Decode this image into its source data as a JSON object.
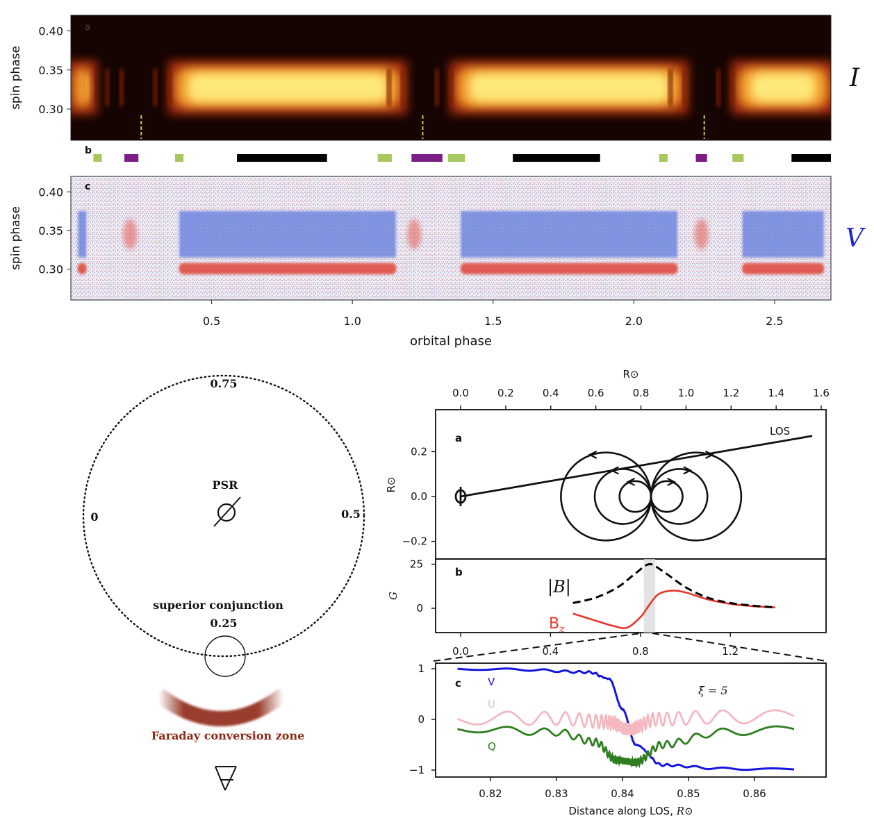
{
  "top_figure": {
    "panel_a": {
      "label": "a",
      "ylabel": "spin phase",
      "yticks": [
        "0.40",
        "0.35",
        "0.30"
      ],
      "side_label": "I",
      "eclipse_marker_color": "#d9c23a"
    },
    "panel_b": {
      "label": "b",
      "colors": {
        "green": "#a6c85e",
        "purple": "#7b1e86",
        "black": "#000000"
      }
    },
    "panel_c": {
      "label": "c",
      "ylabel": "spin phase",
      "yticks": [
        "0.40",
        "0.35",
        "0.30"
      ],
      "side_label": "V",
      "side_label_color": "#1f23d6"
    },
    "xticks": [
      "0.5",
      "1.0",
      "1.5",
      "2.0",
      "2.5"
    ],
    "xlabel": "orbital phase"
  },
  "orbit_diagram": {
    "label_top": "0.75",
    "label_left": "0",
    "label_right": "0.5",
    "center_label": "PSR",
    "conjunction_label": "superior conjunction",
    "label_bottom": "0.25",
    "zone_label": "Faraday conversion zone",
    "zone_color": "#8e2a17"
  },
  "chart_data": [
    {
      "type": "heatmap",
      "panel": "a",
      "title": "",
      "xlabel": "orbital phase",
      "ylabel": "spin phase",
      "xlim": [
        0.0,
        2.7
      ],
      "ylim": [
        0.26,
        0.42
      ],
      "bright_intervals_orbital_phase": [
        [
          0.0,
          0.08
        ],
        [
          0.36,
          1.18
        ],
        [
          1.36,
          2.18
        ],
        [
          2.36,
          2.7
        ]
      ],
      "bright_spin_phase_range": [
        0.3,
        0.355
      ],
      "eclipse_markers_orbital_phase": [
        0.25,
        1.25,
        2.25
      ],
      "colormap": "hot (black-red-yellow)"
    },
    {
      "type": "timeline",
      "panel": "b",
      "segments": [
        {
          "start": 0.08,
          "end": 0.11,
          "color": "green"
        },
        {
          "start": 0.19,
          "end": 0.24,
          "color": "purple"
        },
        {
          "start": 0.37,
          "end": 0.4,
          "color": "green"
        },
        {
          "start": 0.59,
          "end": 0.91,
          "color": "black"
        },
        {
          "start": 1.09,
          "end": 1.14,
          "color": "green"
        },
        {
          "start": 1.21,
          "end": 1.32,
          "color": "purple"
        },
        {
          "start": 1.34,
          "end": 1.4,
          "color": "green"
        },
        {
          "start": 1.57,
          "end": 1.88,
          "color": "black"
        },
        {
          "start": 2.09,
          "end": 2.12,
          "color": "green"
        },
        {
          "start": 2.22,
          "end": 2.26,
          "color": "purple"
        },
        {
          "start": 2.35,
          "end": 2.39,
          "color": "green"
        },
        {
          "start": 2.56,
          "end": 2.7,
          "color": "black"
        }
      ]
    },
    {
      "type": "heatmap",
      "panel": "c",
      "xlabel": "orbital phase",
      "ylabel": "spin phase",
      "xlim": [
        0.0,
        2.7
      ],
      "ylim": [
        0.26,
        0.42
      ],
      "blue_band_spin_phase": [
        0.315,
        0.375
      ],
      "red_band_spin_phase": [
        0.297,
        0.306
      ],
      "red_spots_orbital_phase": [
        0.21,
        1.22,
        2.24
      ],
      "colormap": "bwr"
    },
    {
      "type": "line",
      "panel": "a",
      "label": "a",
      "top_axis_label": "R⊙",
      "ylabel": "R⊙",
      "xlim": [
        0.0,
        1.6
      ],
      "ylim": [
        -0.25,
        0.3
      ],
      "xticks": [
        "0.0",
        "0.2",
        "0.4",
        "0.6",
        "0.8",
        "1.0",
        "1.2",
        "1.4",
        "1.6"
      ],
      "yticks": [
        "0.2",
        "0.0",
        "−0.2"
      ],
      "los_label": "LOS",
      "los_line": {
        "x": [
          0.0,
          1.56
        ],
        "y": [
          0.0,
          0.27
        ]
      },
      "dipole_center": [
        0.845,
        0.0
      ],
      "loop_radii": [
        0.2,
        0.125,
        0.07
      ]
    },
    {
      "type": "line",
      "panel": "b",
      "label": "b",
      "ylabel": "G",
      "xlim": [
        -0.15,
        1.6
      ],
      "ylim": [
        -12,
        27
      ],
      "xticks": [
        "0.0",
        "0.4",
        "0.8",
        "1.2"
      ],
      "yticks": [
        "25",
        "0"
      ],
      "shaded_x": [
        0.815,
        0.866
      ],
      "series": [
        {
          "name": "|B|",
          "style": "dashed",
          "color": "#000000",
          "x": [
            0.5,
            0.6,
            0.7,
            0.78,
            0.84,
            0.9,
            1.0,
            1.1,
            1.2,
            1.3,
            1.4
          ],
          "y": [
            3,
            6,
            12,
            20,
            25,
            21,
            12,
            6,
            3,
            1.5,
            0.5
          ]
        },
        {
          "name": "B_z",
          "color": "#e8352a",
          "x": [
            0.5,
            0.6,
            0.68,
            0.74,
            0.8,
            0.84,
            0.88,
            0.94,
            1.0,
            1.1,
            1.2,
            1.3,
            1.4
          ],
          "y": [
            -3,
            -7,
            -10,
            -11,
            -5,
            2,
            8,
            10,
            9,
            5,
            2.5,
            1.2,
            0.5
          ]
        }
      ],
      "label_B_abs": "|B|",
      "label_Bz": "B",
      "label_Bz_sub": "z"
    },
    {
      "type": "line",
      "panel": "c",
      "label": "c",
      "xlabel": "Distance along LOS, ",
      "xlabel_unit": "R⊙",
      "xlim": [
        0.812,
        0.868
      ],
      "ylim": [
        -1.1,
        1.1
      ],
      "xticks": [
        "0.82",
        "0.83",
        "0.84",
        "0.85",
        "0.86"
      ],
      "yticks": [
        "1",
        "0",
        "−1"
      ],
      "annotation": "ξ = 5",
      "series": [
        {
          "name": "V",
          "color": "#1515e0",
          "x": [
            0.815,
            0.825,
            0.835,
            0.838,
            0.84,
            0.842,
            0.846,
            0.855,
            0.866
          ],
          "y": [
            1.0,
            0.98,
            0.93,
            0.8,
            0.2,
            -0.5,
            -0.9,
            -0.97,
            -0.99
          ]
        },
        {
          "name": "U",
          "color": "#f4b8c0",
          "x": [
            0.815,
            0.83,
            0.838,
            0.841,
            0.845,
            0.855,
            0.866
          ],
          "y": [
            0.03,
            0.02,
            -0.05,
            -0.2,
            0.0,
            0.05,
            0.05
          ]
        },
        {
          "name": "Q",
          "color": "#2e7d1e",
          "x": [
            0.815,
            0.83,
            0.836,
            0.839,
            0.842,
            0.846,
            0.855,
            0.866
          ],
          "y": [
            -0.18,
            -0.25,
            -0.45,
            -0.8,
            -0.85,
            -0.5,
            -0.25,
            -0.2
          ]
        }
      ]
    }
  ]
}
